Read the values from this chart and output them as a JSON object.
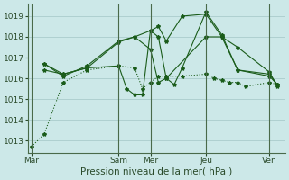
{
  "xlabel": "Pression niveau de la mer( hPa )",
  "ylim": [
    1012.4,
    1019.6
  ],
  "yticks": [
    1013,
    1014,
    1015,
    1016,
    1017,
    1018,
    1019
  ],
  "background_color": "#cce8e8",
  "grid_color": "#aacccc",
  "line_color": "#1a5c1a",
  "xtick_labels": [
    "Mar",
    "Sam",
    "Mer",
    "Jeu",
    "Ven"
  ],
  "xtick_positions": [
    0,
    55,
    75,
    110,
    150
  ],
  "xlim": [
    -2,
    160
  ],
  "vline_positions": [
    0,
    55,
    75,
    110,
    150
  ],
  "series": [
    {
      "x": [
        0,
        8,
        20,
        35,
        55,
        65,
        70,
        75,
        80,
        85,
        95,
        110,
        115,
        120,
        125,
        130,
        135,
        150,
        155
      ],
      "y": [
        1012.7,
        1013.3,
        1015.8,
        1016.4,
        1016.6,
        1016.5,
        1015.5,
        1015.8,
        1016.1,
        1016.1,
        1016.1,
        1016.2,
        1016.0,
        1015.9,
        1015.8,
        1015.8,
        1015.6,
        1015.8,
        1015.7
      ],
      "linestyle": ":"
    },
    {
      "x": [
        8,
        20,
        35,
        55,
        60,
        65,
        70,
        75,
        80,
        85,
        90,
        95,
        110,
        120,
        130,
        150,
        155
      ],
      "y": [
        1016.7,
        1016.2,
        1016.5,
        1016.6,
        1015.5,
        1015.2,
        1015.2,
        1018.3,
        1018.0,
        1016.0,
        1015.7,
        1016.5,
        1019.2,
        1018.1,
        1016.4,
        1016.1,
        1015.7
      ],
      "linestyle": "-"
    },
    {
      "x": [
        8,
        20,
        35,
        55,
        65,
        75,
        80,
        85,
        95,
        110,
        120,
        130,
        150,
        155
      ],
      "y": [
        1016.4,
        1016.2,
        1016.5,
        1017.75,
        1018.0,
        1018.3,
        1018.5,
        1017.8,
        1019.0,
        1019.1,
        1018.0,
        1017.5,
        1016.3,
        1015.6
      ],
      "linestyle": "-"
    },
    {
      "x": [
        8,
        20,
        35,
        55,
        65,
        75,
        80,
        85,
        110,
        120,
        130,
        150,
        155
      ],
      "y": [
        1016.7,
        1016.1,
        1016.6,
        1017.8,
        1018.0,
        1017.4,
        1015.8,
        1016.0,
        1018.0,
        1018.0,
        1016.4,
        1016.2,
        1015.7
      ],
      "linestyle": "-"
    }
  ]
}
